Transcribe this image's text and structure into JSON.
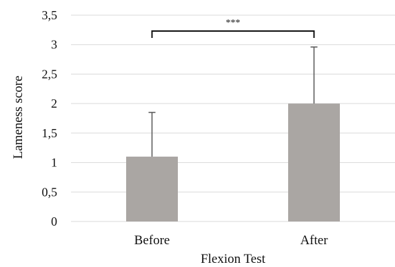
{
  "chart_data": {
    "type": "bar",
    "title": "",
    "xlabel": "Flexion Test",
    "ylabel": "Lameness score",
    "categories": [
      "Before",
      "After"
    ],
    "values": [
      1.1,
      2.0
    ],
    "error_upper": [
      0.75,
      0.96
    ],
    "ylim": [
      0,
      3.5
    ],
    "yticks": [
      "0",
      "0,5",
      "1",
      "1,5",
      "2",
      "2,5",
      "3",
      "3,5"
    ],
    "ytick_values": [
      0,
      0.5,
      1,
      1.5,
      2,
      2.5,
      3,
      3.5
    ],
    "grid": true,
    "legend": "none",
    "significance": {
      "label": "***",
      "between": [
        "Before",
        "After"
      ]
    },
    "colors": {
      "bar": "#aaa6a3",
      "error_bar": "#555555",
      "grid": "#d9d9d9",
      "bracket": "#111111"
    }
  }
}
